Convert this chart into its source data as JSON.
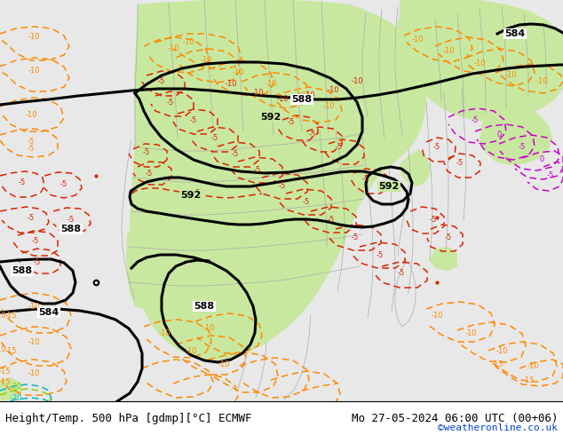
{
  "title_left": "Height/Temp. 500 hPa [gdmp][°C] ECMWF",
  "title_right": "Mo 27-05-2024 06:00 UTC (00+06)",
  "credit": "©weatheronline.co.uk",
  "bg_color": "#e8e8e8",
  "land_green_color": "#c8e8a0",
  "black": "#000000",
  "red": "#dd2200",
  "orange": "#ff8800",
  "magenta": "#cc00cc",
  "gray": "#aaaaaa",
  "cyan": "#00bbbb",
  "yellow_green": "#88cc00",
  "credit_color": "#0044cc",
  "figsize": [
    6.34,
    4.9
  ],
  "dpi": 100,
  "title_fontsize": 9,
  "credit_fontsize": 8
}
